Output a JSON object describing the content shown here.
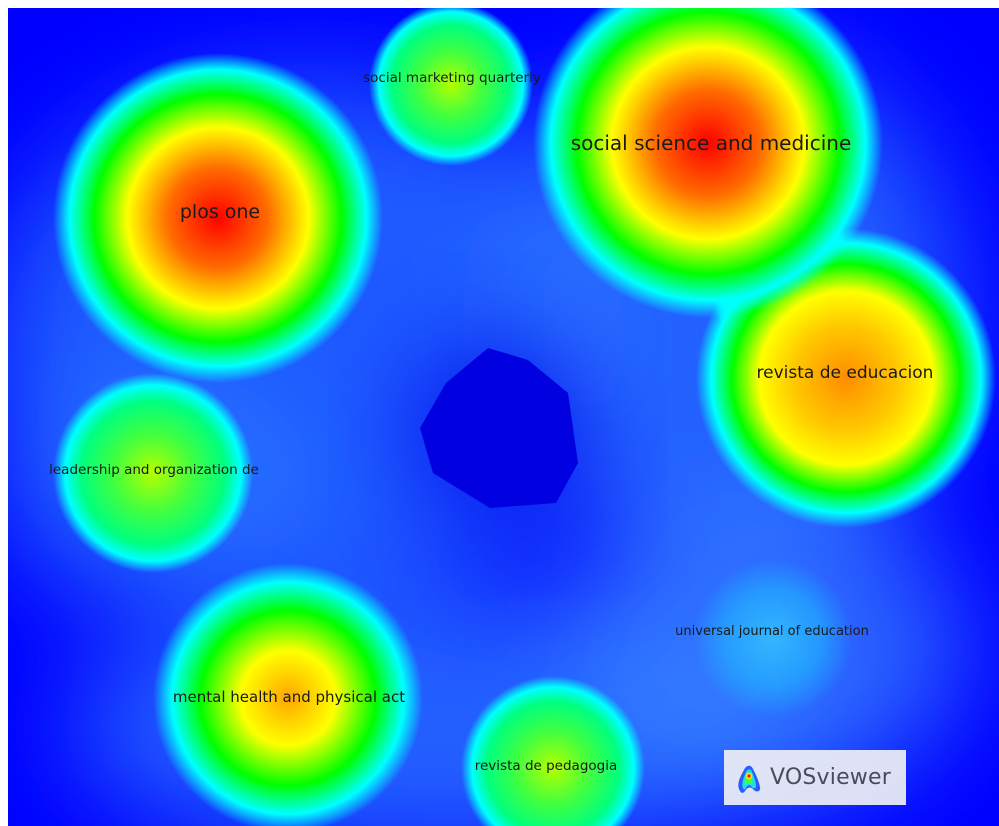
{
  "app": {
    "brand_label": "VOSviewer"
  },
  "colors": {
    "background": "#0000ff",
    "density_stops": [
      "#0000ff",
      "#00ffff",
      "#00ff00",
      "#ffff00",
      "#ff8000",
      "#ff0000"
    ]
  },
  "chart_data": {
    "type": "density-map",
    "nodes": [
      {
        "label": "social science and medicine",
        "weight": 1.0,
        "x": 0.715,
        "y": 0.17
      },
      {
        "label": "plos one",
        "weight": 0.95,
        "x": 0.22,
        "y": 0.25
      },
      {
        "label": "revista de educacion",
        "weight": 0.85,
        "x": 0.845,
        "y": 0.45
      },
      {
        "label": "mental health and physical act",
        "weight": 0.72,
        "x": 0.285,
        "y": 0.845
      },
      {
        "label": "social marketing quarterly",
        "weight": 0.45,
        "x": 0.453,
        "y": 0.093
      },
      {
        "label": "leadership and organization de",
        "weight": 0.42,
        "x": 0.155,
        "y": 0.57
      },
      {
        "label": "revista de pedagogia",
        "weight": 0.38,
        "x": 0.545,
        "y": 0.93
      },
      {
        "label": "universal journal of education",
        "weight": 0.12,
        "x": 0.78,
        "y": 0.77
      }
    ]
  }
}
